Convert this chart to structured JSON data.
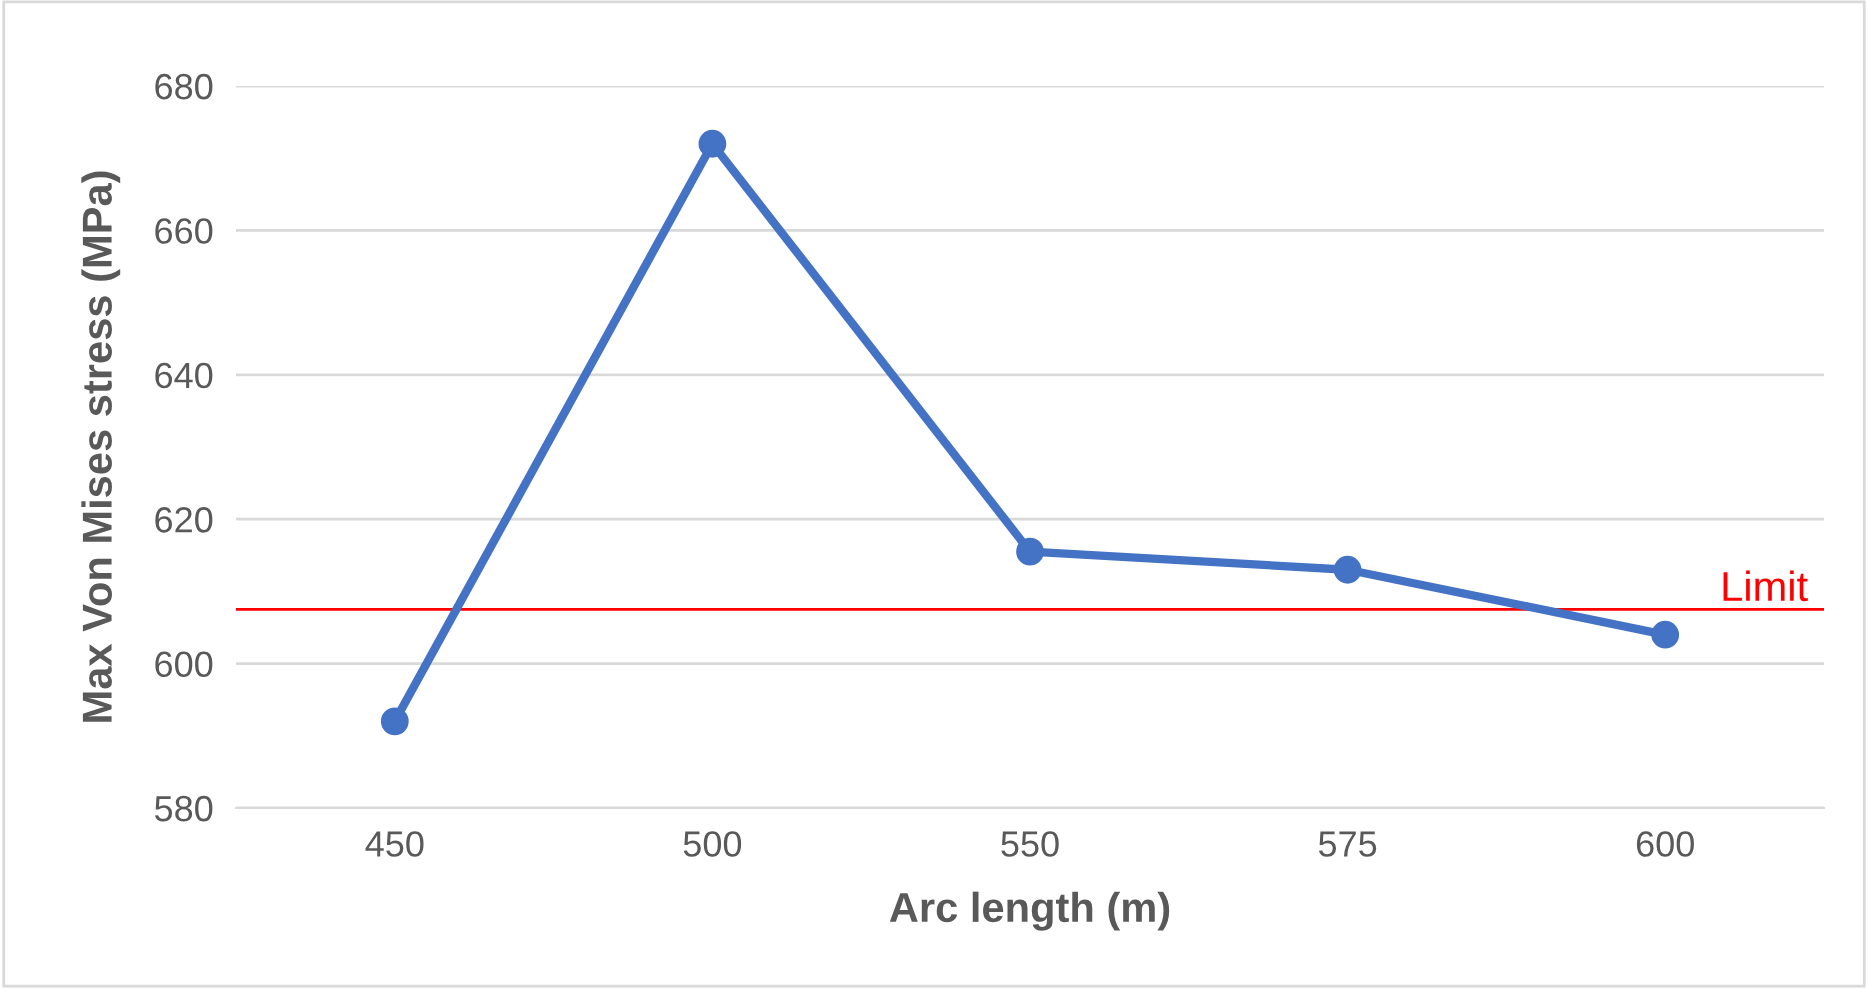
{
  "chart_data": {
    "type": "line",
    "xlabel": "Arc length (m)",
    "ylabel": "Max Von Mises stress (MPa)",
    "categories": [
      "450",
      "500",
      "550",
      "575",
      "600"
    ],
    "series": [
      {
        "color": "#4472c4",
        "values": [
          592,
          672,
          615.5,
          613,
          604
        ]
      }
    ],
    "ylim": [
      580,
      680
    ],
    "yticks": [
      580,
      600,
      620,
      640,
      660,
      680
    ],
    "grid": "y",
    "marker": "circle",
    "line_style": "solid",
    "ref_lines": [
      {
        "axis": "y",
        "value": 607.5,
        "label": "Limit",
        "color": "#ff0000"
      }
    ]
  }
}
